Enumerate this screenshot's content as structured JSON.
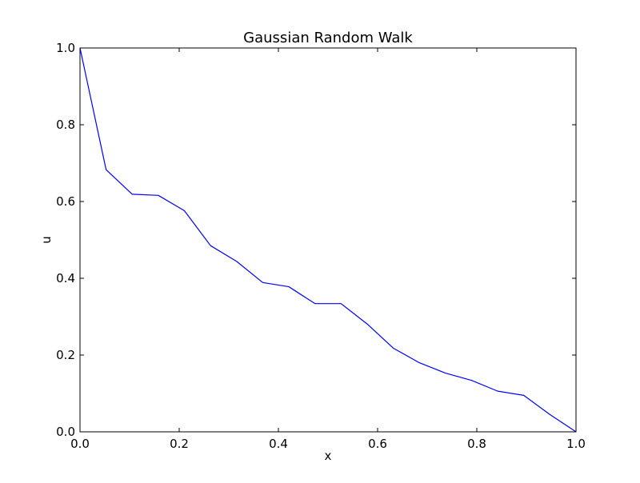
{
  "chart_data": {
    "type": "line",
    "title": "Gaussian Random Walk",
    "xlabel": "x",
    "ylabel": "u",
    "xlim": [
      0.0,
      1.0
    ],
    "ylim": [
      0.0,
      1.0
    ],
    "xticks": [
      "0.0",
      "0.2",
      "0.4",
      "0.6",
      "0.8",
      "1.0"
    ],
    "yticks": [
      "0.0",
      "0.2",
      "0.4",
      "0.6",
      "0.8",
      "1.0"
    ],
    "grid": false,
    "series": [
      {
        "color": "#0000ff",
        "x": [
          0.0,
          0.0526,
          0.1053,
          0.1579,
          0.2105,
          0.2632,
          0.3158,
          0.3684,
          0.4211,
          0.4737,
          0.5263,
          0.5789,
          0.6316,
          0.6842,
          0.7368,
          0.7895,
          0.8421,
          0.8947,
          0.9474,
          1.0
        ],
        "y": [
          1.0,
          0.683,
          0.619,
          0.616,
          0.576,
          0.485,
          0.444,
          0.389,
          0.378,
          0.334,
          0.334,
          0.281,
          0.218,
          0.18,
          0.153,
          0.134,
          0.106,
          0.095,
          0.045,
          0.0
        ]
      }
    ]
  }
}
